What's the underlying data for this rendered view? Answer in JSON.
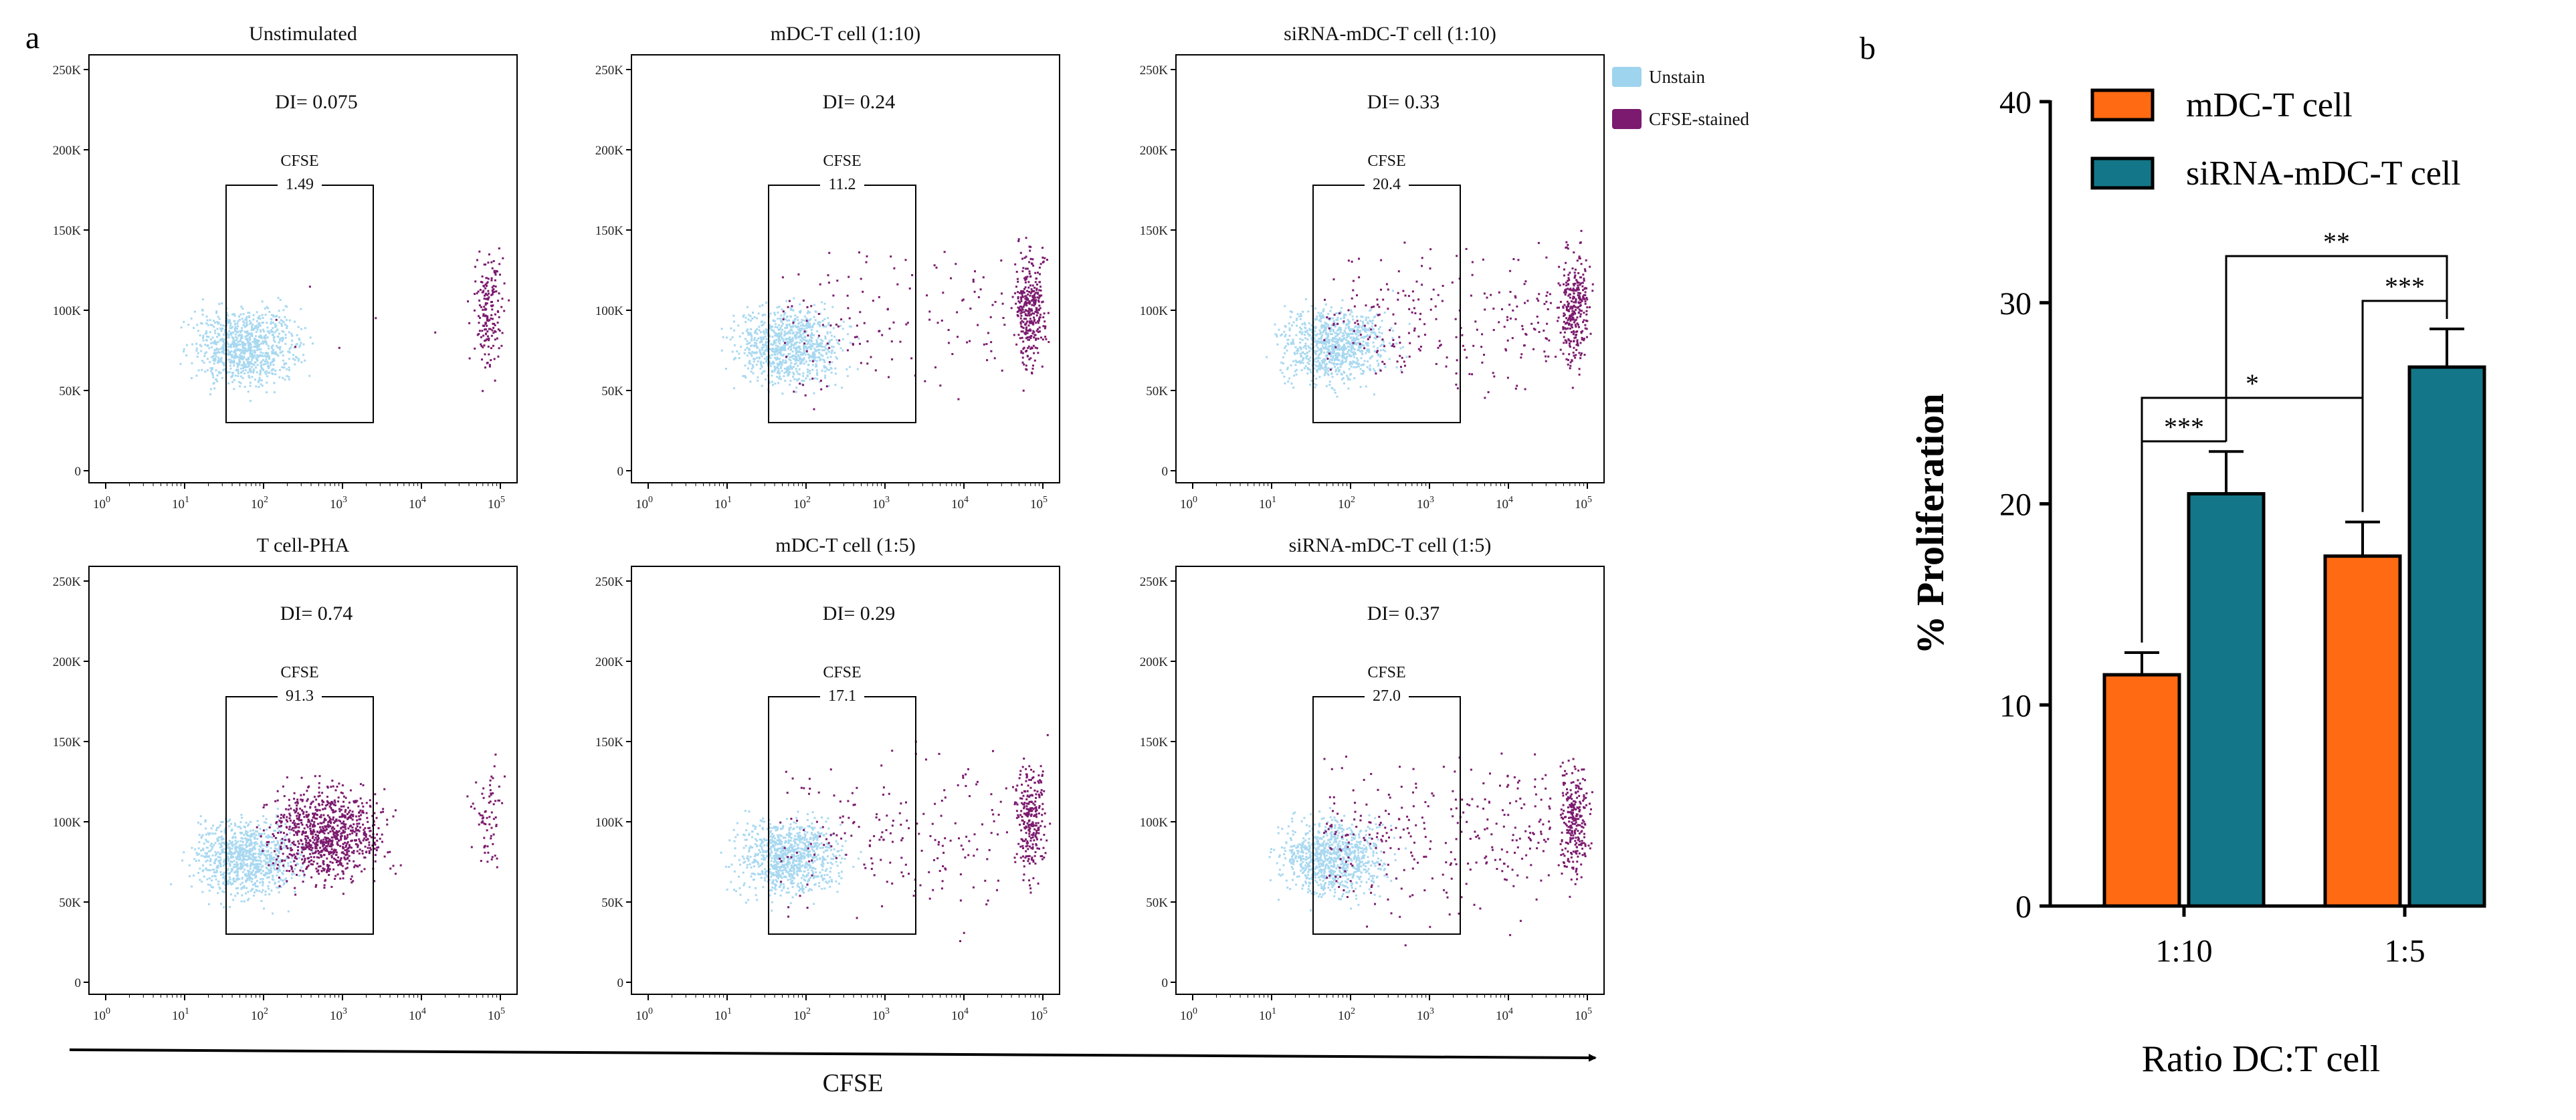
{
  "panel_a": {
    "letter": "a",
    "legend": [
      {
        "label": "Unstain",
        "color": "#9fd4ee"
      },
      {
        "label": "CFSE-stained",
        "color": "#7b1a6e"
      }
    ],
    "gate_label": "CFSE",
    "x_axis_title": "CFSE",
    "x_ticks": [
      [
        "10",
        "0"
      ],
      [
        "10",
        "1"
      ],
      [
        "10",
        "2"
      ],
      [
        "10",
        "3"
      ],
      [
        "10",
        "4"
      ],
      [
        "10",
        "5"
      ]
    ],
    "y_ticks": [
      "0",
      "50K",
      "100K",
      "150K",
      "200K",
      "250K"
    ],
    "plots": [
      {
        "title": "Unstimulated",
        "di": "DI= 0.075",
        "gate_value": "1.49"
      },
      {
        "title": "mDC-T cell (1:10)",
        "di": "DI= 0.24",
        "gate_value": "11.2"
      },
      {
        "title": "siRNA-mDC-T cell (1:10)",
        "di": "DI= 0.33",
        "gate_value": "20.4"
      },
      {
        "title": "T cell-PHA",
        "di": "DI= 0.74",
        "gate_value": "91.3"
      },
      {
        "title": "mDC-T cell (1:5)",
        "di": "DI= 0.29",
        "gate_value": "17.1"
      },
      {
        "title": "siRNA-mDC-T cell (1:5)",
        "di": "DI= 0.37",
        "gate_value": "27.0"
      }
    ]
  },
  "chart_data": {
    "type": "bar",
    "panel_letter": "b",
    "categories": [
      "1:10",
      "1:5"
    ],
    "series": [
      {
        "name": "mDC-T cell",
        "color": "#ff6a13",
        "values": [
          11.5,
          17.4
        ],
        "errors": [
          1.1,
          1.7
        ]
      },
      {
        "name": "siRNA-mDC-T cell",
        "color": "#137789",
        "values": [
          20.5,
          26.8
        ],
        "errors": [
          2.1,
          1.9
        ]
      }
    ],
    "xlabel": "Ratio DC:T cell",
    "ylabel": "% Proliferation",
    "ylim": [
      0,
      40
    ],
    "yticks": [
      "0",
      "10",
      "20",
      "30",
      "40"
    ],
    "legend_position": "top",
    "significance": [
      {
        "label": "***",
        "from": "1:10 mDC-T cell",
        "to": "1:10 siRNA-mDC-T cell"
      },
      {
        "label": "*",
        "from": "1:10 mDC-T cell",
        "to": "1:5 mDC-T cell"
      },
      {
        "label": "***",
        "from": "1:5 mDC-T cell",
        "to": "1:5 siRNA-mDC-T cell"
      },
      {
        "label": "**",
        "from": "1:10 siRNA-mDC-T cell",
        "to": "1:5 siRNA-mDC-T cell"
      }
    ]
  }
}
